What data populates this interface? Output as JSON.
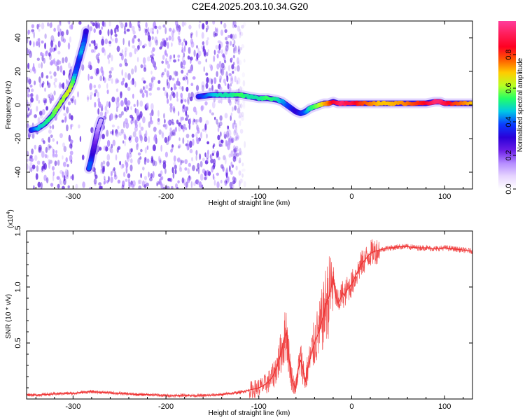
{
  "title": "C2E4.2025.203.10.34.G20",
  "colors": {
    "snr_line": "#ee3333",
    "spectrogram_noise": "#5b1ee0",
    "track_core": "#ff3333",
    "colorbar_stops": [
      "#ffffff",
      "#e6d4ff",
      "#b58cff",
      "#6a1de6",
      "#2a00d8",
      "#0a3cff",
      "#00c8e6",
      "#22ff66",
      "#b8ff22",
      "#ffcc00",
      "#ff5a00",
      "#ff0022",
      "#ff1e5a",
      "#ff3c9c"
    ]
  },
  "chart_data": [
    {
      "type": "heatmap",
      "title": "C2E4.2025.203.10.34.G20",
      "xlabel": "Height of straight line (km)",
      "ylabel": "Frequency (Hz)",
      "xlim": [
        -350,
        130
      ],
      "ylim": [
        -50,
        50
      ],
      "x_ticks": [
        -300,
        -200,
        -100,
        0,
        100
      ],
      "y_ticks": [
        -40,
        -20,
        0,
        20,
        40
      ],
      "colorbar": {
        "label": "Normalized spectral amplitude",
        "range": [
          0,
          1
        ],
        "ticks": [
          "0.0",
          "0.2",
          "0.4",
          "0.6",
          "0.8"
        ]
      },
      "noise_region_x": [
        -350,
        -115
      ],
      "tracks": [
        {
          "x": [
            -345,
            -338,
            -330,
            -322,
            -316,
            -310,
            -304,
            -300,
            -297,
            -294,
            -291,
            -288,
            -286
          ],
          "freq": [
            -15,
            -14,
            -11,
            -6,
            -1,
            4,
            9,
            14,
            20,
            26,
            32,
            38,
            44
          ],
          "amplitude": [
            0.35,
            0.45,
            0.5,
            0.55,
            0.6,
            0.6,
            0.65,
            0.55,
            0.4,
            0.35,
            0.45,
            0.4,
            0.3
          ]
        },
        {
          "x": [
            -283,
            -281,
            -279,
            -277,
            -275,
            -273,
            -270
          ],
          "freq": [
            -38,
            -34,
            -29,
            -24,
            -19,
            -14,
            -9
          ],
          "amplitude": [
            0.4,
            0.4,
            0.3,
            0.25,
            0.2,
            0.15,
            0.12
          ]
        },
        {
          "x": [
            -165,
            -150,
            -140,
            -130,
            -120,
            -110,
            -100,
            -90,
            -80,
            -75,
            -70,
            -65,
            -60,
            -55,
            -50,
            -45,
            -40,
            -35,
            -30,
            -25,
            -20,
            -15,
            -10,
            -5,
            0,
            5,
            10,
            20,
            30,
            40,
            50,
            60,
            70,
            80,
            90,
            95,
            100,
            110,
            120,
            130
          ],
          "freq": [
            5,
            6,
            6,
            6,
            6,
            5,
            4,
            4,
            3,
            2,
            0,
            -2,
            -4,
            -5,
            -4,
            -2,
            -1,
            0,
            1,
            1,
            2,
            1,
            1,
            1,
            1,
            1,
            1,
            1,
            1,
            1,
            1,
            1,
            1,
            1,
            2,
            2,
            1,
            1,
            1,
            1
          ],
          "amplitude": [
            0.35,
            0.45,
            0.5,
            0.5,
            0.55,
            0.5,
            0.5,
            0.55,
            0.5,
            0.45,
            0.4,
            0.35,
            0.3,
            0.35,
            0.4,
            0.5,
            0.55,
            0.6,
            0.7,
            0.75,
            0.85,
            0.9,
            0.95,
            0.9,
            0.9,
            0.85,
            0.8,
            0.75,
            0.7,
            0.7,
            0.72,
            0.75,
            0.8,
            0.85,
            0.95,
            0.95,
            0.9,
            0.8,
            0.75,
            0.7
          ]
        }
      ]
    },
    {
      "type": "line",
      "xlabel": "Height of straight line (km)",
      "ylabel": "SNR (10 * v/v)",
      "y_multiplier": "(x10^4)",
      "xlim": [
        -350,
        130
      ],
      "ylim": [
        0,
        1.5
      ],
      "x_ticks": [
        -300,
        -200,
        -100,
        0,
        100
      ],
      "y_ticks": [
        0.5,
        1.0,
        1.5
      ],
      "series": [
        {
          "x": [
            -350,
            -340,
            -330,
            -320,
            -310,
            -300,
            -290,
            -280,
            -270,
            -260,
            -250,
            -240,
            -230,
            -220,
            -210,
            -200,
            -190,
            -180,
            -170,
            -160,
            -150,
            -140,
            -130,
            -120,
            -110,
            -100,
            -95,
            -90,
            -85,
            -80,
            -75,
            -72,
            -70,
            -68,
            -65,
            -62,
            -60,
            -58,
            -55,
            -52,
            -50,
            -48,
            -45,
            -42,
            -40,
            -38,
            -35,
            -32,
            -30,
            -28,
            -25,
            -22,
            -20,
            -18,
            -15,
            -12,
            -10,
            -8,
            -5,
            -2,
            0,
            3,
            6,
            10,
            15,
            20,
            25,
            30,
            35,
            40,
            45,
            50,
            60,
            70,
            80,
            90,
            100,
            110,
            120,
            130
          ],
          "values": [
            0.04,
            0.035,
            0.04,
            0.045,
            0.05,
            0.05,
            0.06,
            0.065,
            0.06,
            0.055,
            0.05,
            0.045,
            0.04,
            0.04,
            0.035,
            0.03,
            0.03,
            0.035,
            0.03,
            0.03,
            0.035,
            0.04,
            0.05,
            0.06,
            0.08,
            0.1,
            0.12,
            0.15,
            0.2,
            0.3,
            0.45,
            0.55,
            0.6,
            0.4,
            0.2,
            0.12,
            0.1,
            0.25,
            0.35,
            0.25,
            0.15,
            0.25,
            0.35,
            0.45,
            0.5,
            0.55,
            0.6,
            0.7,
            0.75,
            0.85,
            0.9,
            1.0,
            1.1,
            0.95,
            0.85,
            0.9,
            0.95,
            0.92,
            0.98,
            1.0,
            1.03,
            1.08,
            1.13,
            1.2,
            1.25,
            1.3,
            1.32,
            1.33,
            1.34,
            1.35,
            1.35,
            1.36,
            1.36,
            1.35,
            1.35,
            1.34,
            1.35,
            1.34,
            1.33,
            1.32
          ]
        }
      ]
    }
  ]
}
